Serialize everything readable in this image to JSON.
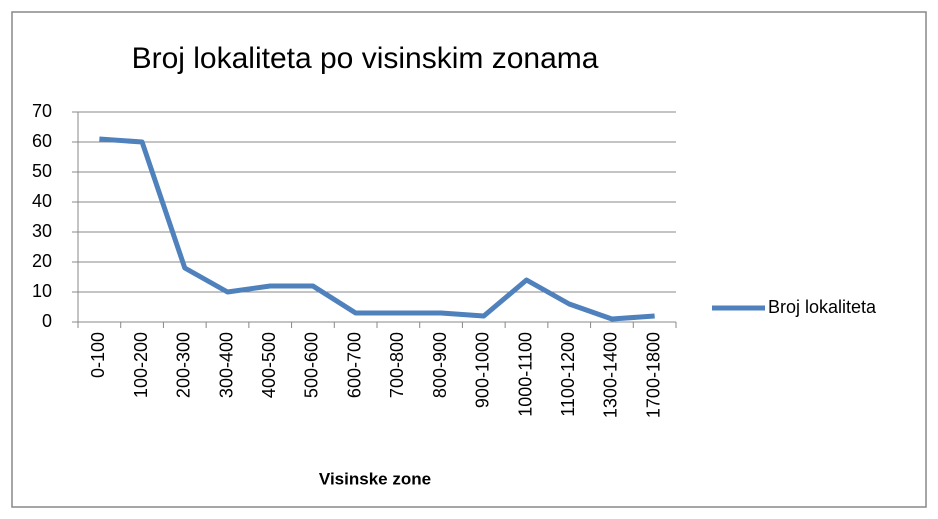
{
  "chart_data": {
    "type": "line",
    "title": "Broj lokaliteta po visinskim zonama",
    "x_label": "Visinske zone",
    "categories": [
      "0-100",
      "100-200",
      "200-300",
      "300-400",
      "400-500",
      "500-600",
      "600-700",
      "700-800",
      "800-900",
      "900-1000",
      "1000-1100",
      "1100-1200",
      "1300-1400",
      "1700-1800"
    ],
    "series": [
      {
        "name": "Broj lokaliteta",
        "color": "#4f81bd",
        "values": [
          61,
          60,
          18,
          10,
          12,
          12,
          3,
          3,
          3,
          2,
          14,
          6,
          1,
          2
        ]
      }
    ],
    "ylim": [
      0,
      70
    ],
    "yticks": [
      0,
      10,
      20,
      30,
      40,
      50,
      60,
      70
    ],
    "grid": true,
    "legend": "right"
  }
}
